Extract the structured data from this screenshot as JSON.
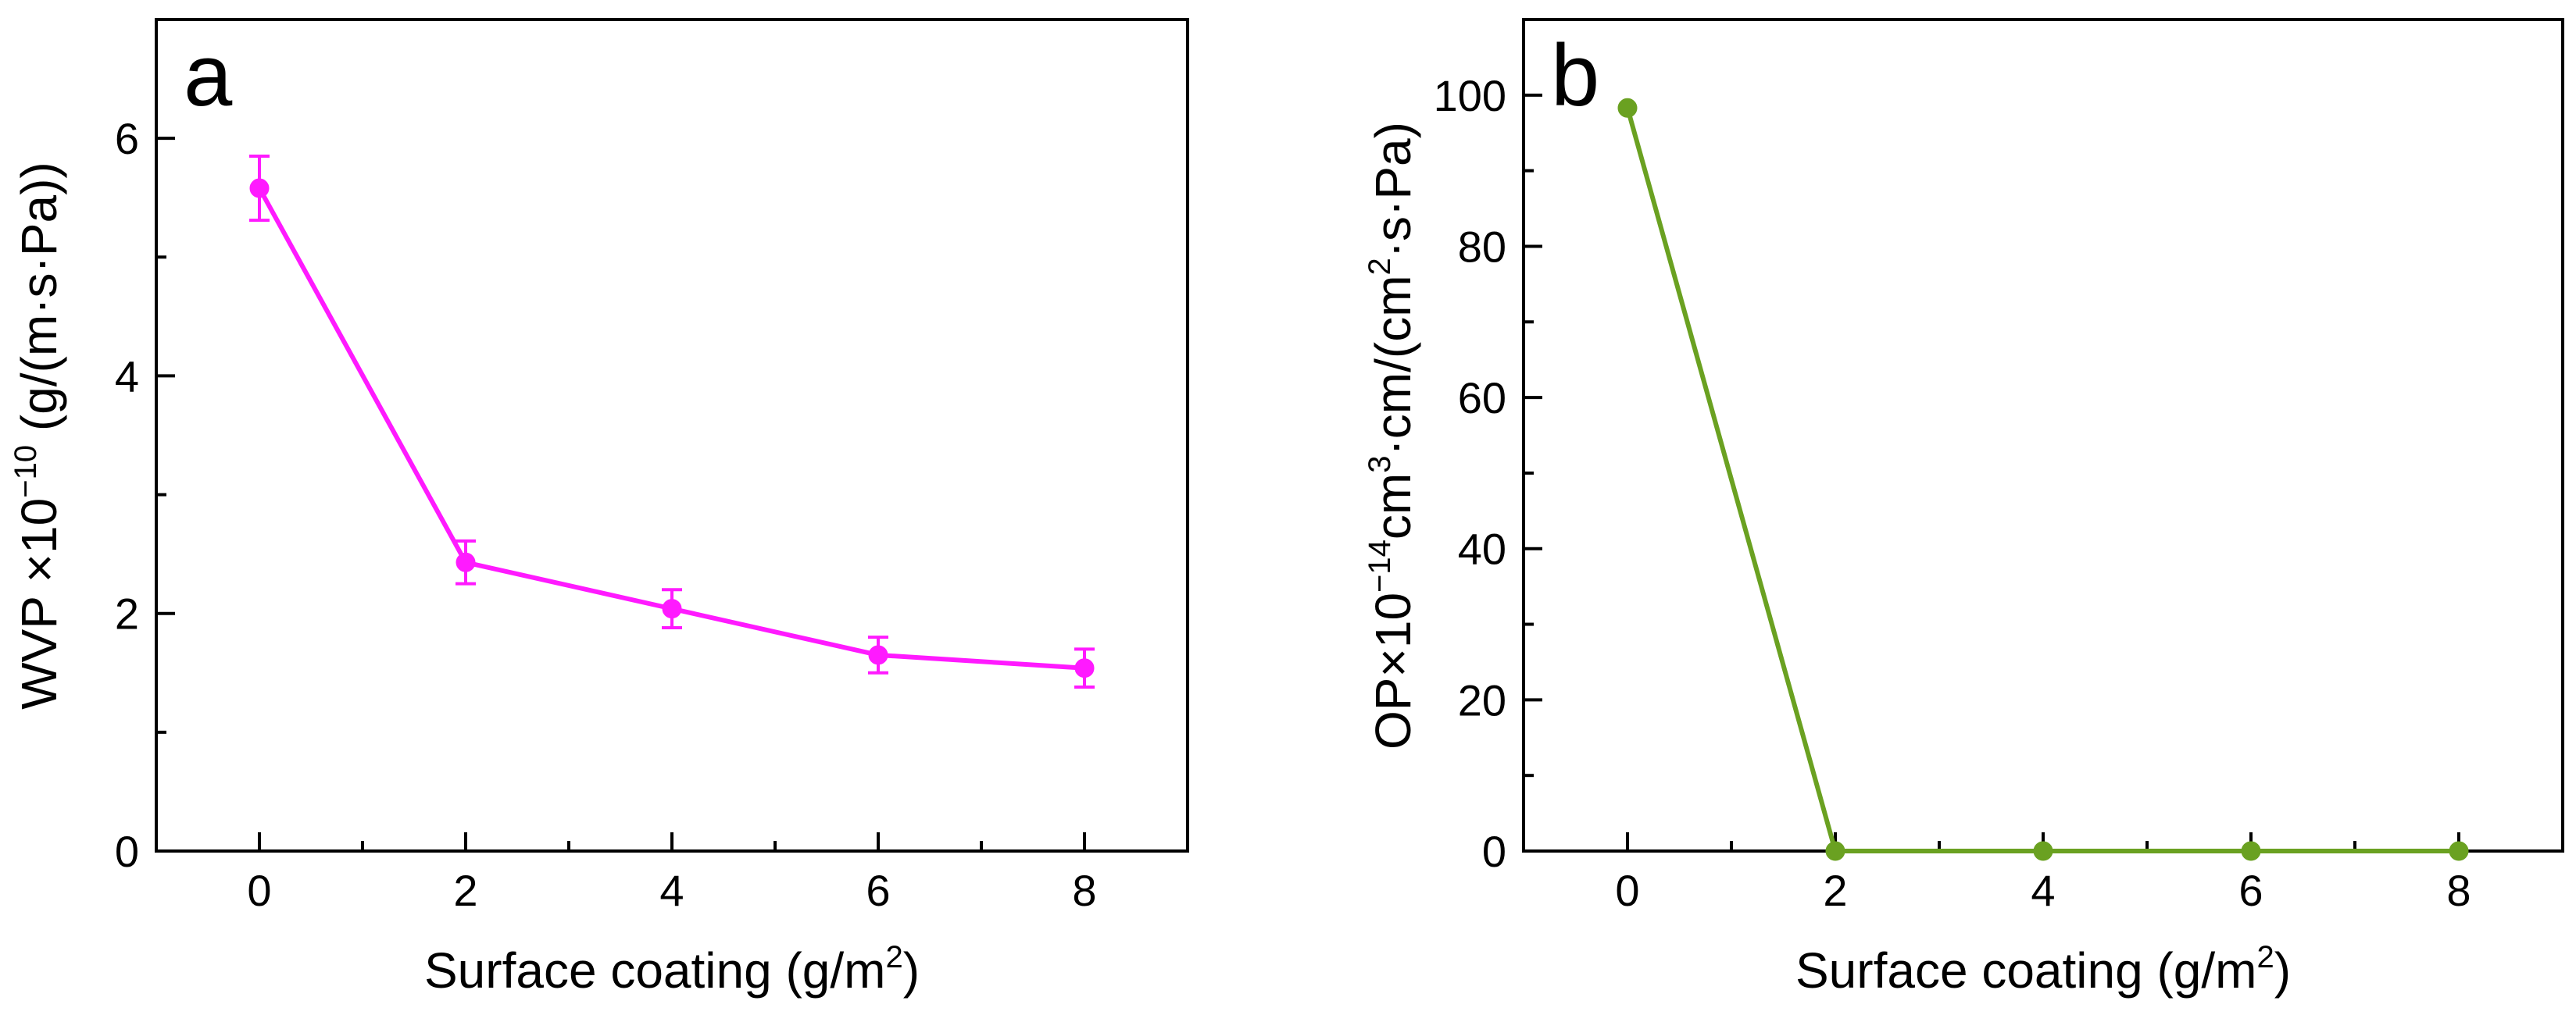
{
  "chart_data": [
    {
      "type": "line",
      "panel": "a",
      "title": "",
      "xlabel": {
        "pre": "Surface coating (g/m",
        "sup": "2",
        "post": ")"
      },
      "ylabel": {
        "pre": "WVP ×10",
        "sup": "−10",
        "post": " (g/(m·s·Pa))"
      },
      "xlim": [
        -1,
        9
      ],
      "ylim": [
        0,
        7
      ],
      "xticks": [
        0,
        2,
        4,
        6,
        8
      ],
      "yticks": [
        0,
        2,
        4,
        6
      ],
      "color": "#ff1aff",
      "series": [
        {
          "name": "WVP",
          "x": [
            0,
            2,
            4,
            6,
            8
          ],
          "values": [
            5.58,
            2.43,
            2.04,
            1.65,
            1.54
          ],
          "errors": [
            0.27,
            0.18,
            0.16,
            0.15,
            0.16
          ]
        }
      ]
    },
    {
      "type": "line",
      "panel": "b",
      "title": "",
      "xlabel": {
        "pre": "Surface coating (g/m",
        "sup": "2",
        "post": ")"
      },
      "ylabel": {
        "pre": "OP×10",
        "sup": "−14",
        "mid": "cm",
        "sup2": "3",
        "mid2": "·cm/(cm",
        "sup3": "2",
        "post": "·s·Pa)"
      },
      "xlim": [
        -1,
        9
      ],
      "ylim": [
        0,
        110
      ],
      "xticks": [
        0,
        2,
        4,
        6,
        8
      ],
      "yticks": [
        0,
        20,
        40,
        60,
        80,
        100
      ],
      "color": "#6aa121",
      "series": [
        {
          "name": "OP",
          "x": [
            0,
            2,
            4,
            6,
            8
          ],
          "values": [
            98.3,
            0,
            0,
            0,
            0
          ],
          "errors": [
            0,
            0,
            0,
            0,
            0
          ]
        }
      ]
    }
  ]
}
